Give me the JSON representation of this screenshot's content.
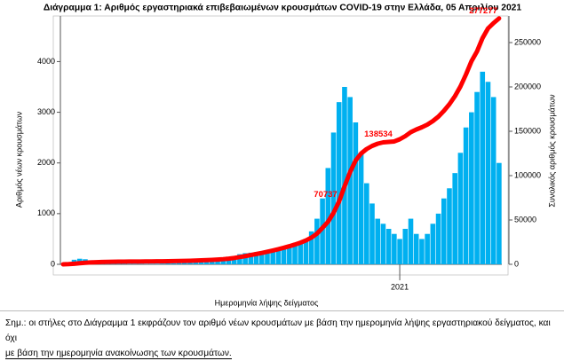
{
  "chart_data": {
    "type": "bar",
    "title": "Διάγραμμα 1: Αριθμός εργαστηριακά επιβεβαιωμένων κρουσμάτων COVID-19 στην Ελλάδα, 05 Απριλίου 2021",
    "x_label": "Ημερομηνία λήψης δείγματος",
    "y_label": "Αριθμός νέων κρουσμάτων",
    "y2_label": "Συνολικός αριθμός κρουσμάτων",
    "note": "Σημ.: οι στήλες στο Διάγραμμα 1 εκφράζουν τον αριθμό νέων κρουσμάτων με βάση την ημερομηνία λήψης εργαστηριακού δείγματος, και όχι",
    "note_line2": "με βάση την ημερομηνία ανακοίνωσης των κρουσμάτων.",
    "categories": [
      null,
      null,
      null,
      null,
      null,
      null,
      null,
      null,
      null,
      null,
      null,
      null,
      null,
      null,
      null,
      null,
      null,
      null,
      null,
      null,
      null,
      null,
      null,
      null,
      null,
      null,
      null,
      null,
      null,
      null,
      null,
      null,
      null,
      null,
      null,
      null,
      null,
      null,
      null,
      null,
      null,
      null,
      null,
      null,
      null,
      null,
      null,
      null,
      null,
      null,
      null,
      null,
      null,
      null,
      null,
      null,
      null,
      null,
      null,
      null,
      null,
      "2021",
      null,
      null,
      null,
      null,
      null,
      null,
      null,
      null,
      null,
      null,
      null,
      null,
      null,
      null,
      null,
      null,
      null,
      null
    ],
    "series": [
      {
        "type": "bar",
        "color": "#00b0f0",
        "values": [
          5,
          40,
          90,
          110,
          100,
          80,
          60,
          50,
          30,
          20,
          15,
          12,
          10,
          10,
          8,
          8,
          10,
          12,
          15,
          18,
          20,
          25,
          30,
          35,
          40,
          45,
          50,
          60,
          70,
          90,
          120,
          150,
          200,
          220,
          230,
          240,
          250,
          260,
          280,
          300,
          320,
          350,
          380,
          420,
          500,
          650,
          900,
          1300,
          1900,
          2600,
          3200,
          3500,
          3300,
          2800,
          2200,
          1600,
          1200,
          900,
          800,
          700,
          600,
          500,
          700,
          900,
          600,
          500,
          600,
          800,
          1000,
          1300,
          1500,
          1800,
          2200,
          2700,
          3000,
          3400,
          3800,
          3600,
          3300,
          2000
        ]
      },
      {
        "type": "line",
        "axis": "y2",
        "color": "#ff0000",
        "values": [
          0,
          200,
          650,
          1200,
          1700,
          2100,
          2400,
          2650,
          2800,
          2900,
          2980,
          3040,
          3090,
          3140,
          3180,
          3220,
          3270,
          3330,
          3400,
          3490,
          3590,
          3710,
          3860,
          4030,
          4230,
          4460,
          4710,
          5010,
          5360,
          5810,
          6410,
          7160,
          8160,
          9260,
          10410,
          11610,
          12860,
          14160,
          15560,
          17060,
          18660,
          20410,
          22310,
          24410,
          26910,
          30160,
          34660,
          41160,
          48000,
          58000,
          70737,
          88000,
          104000,
          117000,
          125000,
          130000,
          133500,
          136000,
          137500,
          138000,
          138534,
          141000,
          144500,
          149000,
          152000,
          154500,
          157500,
          161500,
          166500,
          173000,
          180500,
          189500,
          200500,
          214000,
          229000,
          240000,
          255000,
          266000,
          272000,
          277277
        ],
        "labeled": [
          50,
          60,
          79
        ]
      }
    ],
    "ylim": [
      0,
      4900
    ],
    "yticks": [
      0,
      1000,
      2000,
      3000,
      4000
    ],
    "y2lim": [
      0,
      280000
    ],
    "y2ticks": [
      0,
      50000,
      100000,
      150000,
      200000,
      250000
    ]
  }
}
